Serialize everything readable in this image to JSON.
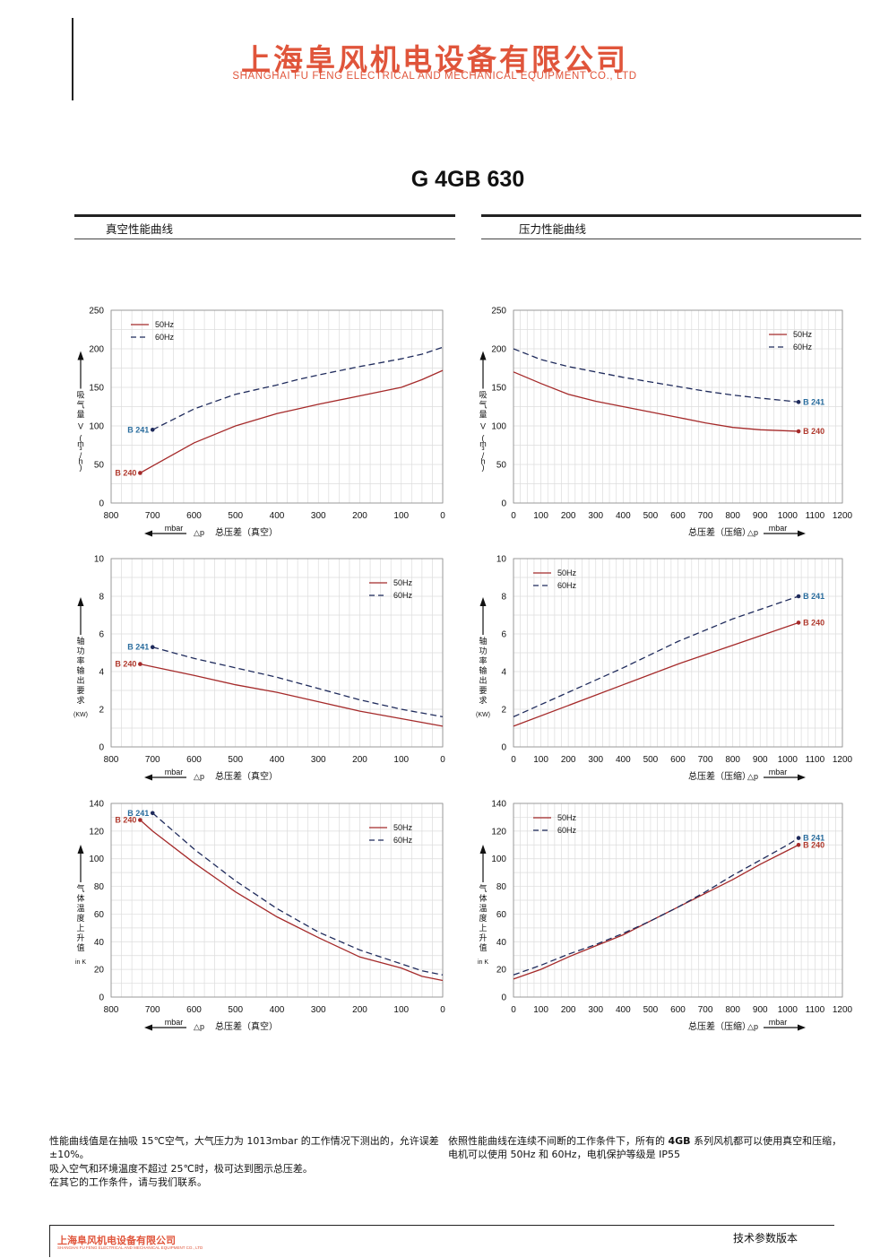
{
  "header": {
    "company_cn": "上海阜风机电设备有限公司",
    "company_en": "SHANGHAI FU FENG ELECTRICAL AND MECHANICAL EQUIPMENT CO., LTD"
  },
  "model_title": "G 4GB 630",
  "sections": {
    "vacuum_title": "真空性能曲线",
    "pressure_title": "压力性能曲线"
  },
  "colors": {
    "series_50hz": "#a52a2a",
    "series_60hz": "#1f2b5c",
    "brand": "#e0553b"
  },
  "chart_data": [
    {
      "id": "vac-flow",
      "type": "line",
      "ylabel": "吸气量 V (m³/h)",
      "xlabel": "总压差（真空）",
      "xunit": "mbar",
      "delta_p": "△p",
      "xlim": [
        800,
        0
      ],
      "ylim": [
        0,
        250
      ],
      "yticks": [
        0,
        50,
        100,
        150,
        200,
        250
      ],
      "xticks": [
        800,
        700,
        600,
        500,
        400,
        300,
        200,
        100,
        0
      ],
      "legend": "top-left",
      "grid": true,
      "series": [
        {
          "name": "50Hz",
          "style": "solid",
          "end_label": "B 240",
          "x": [
            730,
            700,
            600,
            500,
            400,
            350,
            300,
            200,
            100,
            50,
            0
          ],
          "y": [
            39,
            48,
            78,
            100,
            116,
            122,
            128,
            139,
            150,
            160,
            172
          ]
        },
        {
          "name": "60Hz",
          "style": "dashed",
          "end_label": "B 241",
          "x": [
            700,
            600,
            500,
            400,
            350,
            300,
            200,
            100,
            50,
            0
          ],
          "y": [
            95,
            122,
            141,
            153,
            160,
            166,
            177,
            187,
            193,
            202
          ]
        }
      ]
    },
    {
      "id": "prs-flow",
      "type": "line",
      "ylabel": "吸气量 V (m³/h)",
      "xlabel": "总压差（压缩）",
      "xunit": "mbar",
      "delta_p": "△p",
      "xlim": [
        0,
        1200
      ],
      "ylim": [
        0,
        250
      ],
      "yticks": [
        0,
        50,
        100,
        150,
        200,
        250
      ],
      "xticks": [
        0,
        100,
        200,
        300,
        400,
        500,
        600,
        700,
        800,
        900,
        1000,
        1100,
        1200
      ],
      "legend": "top-right",
      "grid": true,
      "series": [
        {
          "name": "50Hz",
          "style": "solid",
          "end_label": "B 240",
          "x": [
            0,
            100,
            200,
            300,
            400,
            500,
            600,
            700,
            800,
            900,
            1040
          ],
          "y": [
            170,
            155,
            141,
            132,
            125,
            118,
            111,
            104,
            98,
            95,
            93
          ]
        },
        {
          "name": "60Hz",
          "style": "dashed",
          "end_label": "B 241",
          "x": [
            0,
            100,
            200,
            300,
            400,
            500,
            600,
            700,
            800,
            900,
            1040
          ],
          "y": [
            200,
            186,
            177,
            170,
            163,
            157,
            151,
            145,
            140,
            136,
            131
          ]
        }
      ]
    },
    {
      "id": "vac-power",
      "type": "line",
      "ylabel": "轴功率输出要求",
      "yunit": "(KW)",
      "xlabel": "总压差（真空）",
      "xunit": "mbar",
      "delta_p": "△p",
      "xlim": [
        800,
        0
      ],
      "ylim": [
        0,
        10
      ],
      "yticks": [
        0,
        2,
        4,
        6,
        8,
        10
      ],
      "xticks": [
        800,
        700,
        600,
        500,
        400,
        300,
        200,
        100,
        0
      ],
      "legend": "top-right",
      "grid": true,
      "series": [
        {
          "name": "50Hz",
          "style": "solid",
          "end_label": "B 240",
          "x": [
            730,
            600,
            500,
            400,
            300,
            200,
            100,
            0
          ],
          "y": [
            4.4,
            3.8,
            3.3,
            2.9,
            2.4,
            1.9,
            1.5,
            1.1
          ]
        },
        {
          "name": "60Hz",
          "style": "dashed",
          "end_label": "B 241",
          "x": [
            700,
            600,
            500,
            400,
            300,
            200,
            100,
            0
          ],
          "y": [
            5.3,
            4.7,
            4.2,
            3.7,
            3.1,
            2.5,
            2.0,
            1.6
          ]
        }
      ]
    },
    {
      "id": "prs-power",
      "type": "line",
      "ylabel": "轴功率输出要求",
      "yunit": "(KW)",
      "xlabel": "总压差（压缩）",
      "xunit": "mbar",
      "delta_p": "△p",
      "xlim": [
        0,
        1200
      ],
      "ylim": [
        0,
        10
      ],
      "yticks": [
        0,
        2,
        4,
        6,
        8,
        10
      ],
      "xticks": [
        0,
        100,
        200,
        300,
        400,
        500,
        600,
        700,
        800,
        900,
        1000,
        1100,
        1200
      ],
      "legend": "top-left",
      "grid": true,
      "series": [
        {
          "name": "50Hz",
          "style": "solid",
          "end_label": "B 240",
          "x": [
            0,
            200,
            400,
            600,
            800,
            1040
          ],
          "y": [
            1.1,
            2.2,
            3.3,
            4.4,
            5.4,
            6.6
          ]
        },
        {
          "name": "60Hz",
          "style": "dashed",
          "end_label": "B 241",
          "x": [
            0,
            200,
            400,
            600,
            800,
            1040
          ],
          "y": [
            1.6,
            2.9,
            4.2,
            5.6,
            6.8,
            8.0
          ]
        }
      ]
    },
    {
      "id": "vac-temp",
      "type": "line",
      "ylabel": "气体温度上升值",
      "yunit": "in K",
      "xlabel": "总压差（真空）",
      "xunit": "mbar",
      "delta_p": "△p",
      "xlim": [
        800,
        0
      ],
      "ylim": [
        0,
        140
      ],
      "yticks": [
        0,
        20,
        40,
        60,
        80,
        100,
        120,
        140
      ],
      "xticks": [
        800,
        700,
        600,
        500,
        400,
        300,
        200,
        100,
        0
      ],
      "legend": "top-right",
      "grid": true,
      "series": [
        {
          "name": "50Hz",
          "style": "solid",
          "end_label": "B 240",
          "x": [
            730,
            700,
            600,
            500,
            400,
            300,
            200,
            100,
            50,
            0
          ],
          "y": [
            128,
            120,
            97,
            76,
            58,
            43,
            29,
            21,
            15,
            12
          ]
        },
        {
          "name": "60Hz",
          "style": "dashed",
          "end_label": "B 241",
          "x": [
            700,
            600,
            500,
            400,
            300,
            200,
            100,
            50,
            0
          ],
          "y": [
            133,
            107,
            84,
            64,
            47,
            34,
            24,
            19,
            16
          ]
        }
      ]
    },
    {
      "id": "prs-temp",
      "type": "line",
      "ylabel": "气体温度上升值",
      "yunit": "in K",
      "xlabel": "总压差（压缩）",
      "xunit": "mbar",
      "delta_p": "△p",
      "xlim": [
        0,
        1200
      ],
      "ylim": [
        0,
        140
      ],
      "yticks": [
        0,
        20,
        40,
        60,
        80,
        100,
        120,
        140
      ],
      "xticks": [
        0,
        100,
        200,
        300,
        400,
        500,
        600,
        700,
        800,
        900,
        1000,
        1100,
        1200
      ],
      "legend": "top-left",
      "grid": true,
      "series": [
        {
          "name": "50Hz",
          "style": "solid",
          "end_label": "B 240",
          "x": [
            0,
            100,
            200,
            300,
            400,
            500,
            600,
            700,
            800,
            900,
            1000,
            1040
          ],
          "y": [
            13,
            20,
            29,
            37,
            45,
            55,
            65,
            75,
            85,
            96,
            106,
            110
          ]
        },
        {
          "name": "60Hz",
          "style": "dashed",
          "end_label": "B 241",
          "x": [
            0,
            100,
            200,
            300,
            400,
            500,
            600,
            700,
            800,
            900,
            1000,
            1040
          ],
          "y": [
            16,
            23,
            31,
            38,
            46,
            55,
            65,
            76,
            88,
            99,
            110,
            115
          ]
        }
      ]
    }
  ],
  "notes": {
    "left_1": "性能曲线值是在抽吸 15℃空气，大气压力为 1013mbar 的工作情况下测出的，允许误差 ±10%。",
    "left_2": "吸入空气和环境温度不超过 25℃时，极可达到图示总压差。",
    "left_3": "在其它的工作条件，请与我们联系。",
    "right_pre": "依照性能曲线在连续不间断的工作条件下，所有的",
    "right_series": "4GB",
    "right_post": "系列风机都可以使用真空和压缩，电机可以使用 50Hz 和 60Hz，电机保护等级是 IP55"
  },
  "footer": {
    "company_cn": "上海阜风机电设备有限公司",
    "company_en": "SHANGHAI FU FENG ELECTRICAL AND MECHANICAL EQUIPMENT CO., LTD",
    "doc_label": "技术参数版本"
  }
}
